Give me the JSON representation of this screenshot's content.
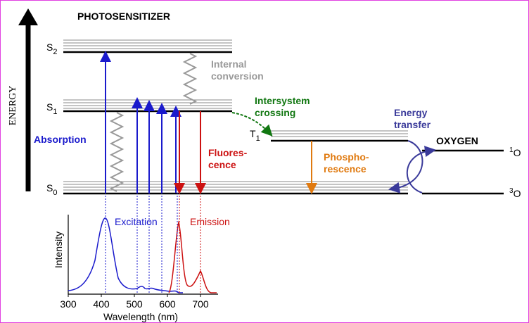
{
  "title": "PHOTOSENSITIZER",
  "axis_label": "ENERGY",
  "states": {
    "s2": {
      "base": "S",
      "sub": "2"
    },
    "s1": {
      "base": "S",
      "sub": "1"
    },
    "s0": {
      "base": "S",
      "sub": "0"
    },
    "t1": {
      "base": "T",
      "sub": "1"
    },
    "o_singlet": {
      "sup": "1",
      "base": "O"
    },
    "o_triplet": {
      "sup": "3",
      "base": "O"
    }
  },
  "labels": {
    "internal_conversion": [
      "Internal",
      "conversion"
    ],
    "intersystem_crossing": [
      "Intersystem",
      "crossing"
    ],
    "absorption": "Absorption",
    "fluorescence": [
      "Fluores-",
      "cence"
    ],
    "phosphorescence": [
      "Phospho-",
      "rescence"
    ],
    "energy_transfer": [
      "Energy",
      "transfer"
    ],
    "oxygen": "OXYGEN"
  },
  "spectrum": {
    "excitation": "Excitation",
    "emission": "Emission",
    "y_label": "Intensity",
    "x_label": "Wavelength (nm)",
    "xticks": [
      300,
      400,
      500,
      600,
      700
    ]
  }
}
